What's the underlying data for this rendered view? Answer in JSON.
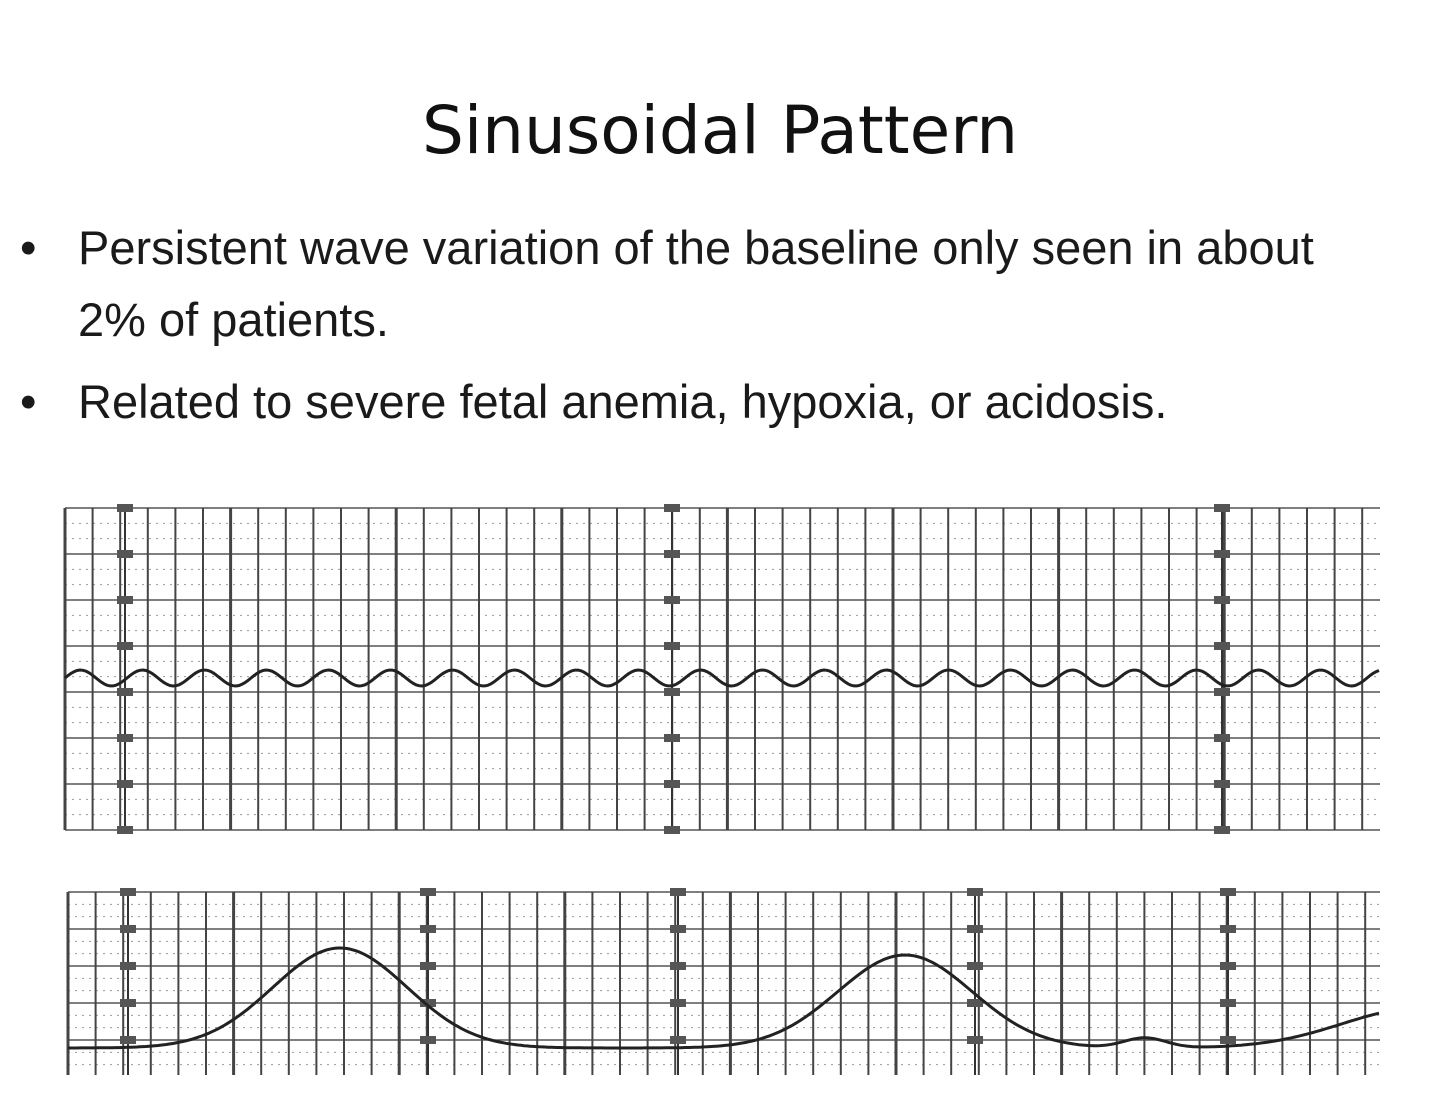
{
  "slide": {
    "title": "Sinusoidal Pattern",
    "bullets": [
      {
        "text": "Persistent wave variation of the baseline only seen in about 2% of patients."
      },
      {
        "text": "Related to severe fetal anemia, hypoxia, or acidosis."
      }
    ]
  },
  "figure": {
    "description_type": "fetal heart rate and uterine contraction tracing strips",
    "trace_color": "#222222",
    "grid_color": "#555555"
  }
}
